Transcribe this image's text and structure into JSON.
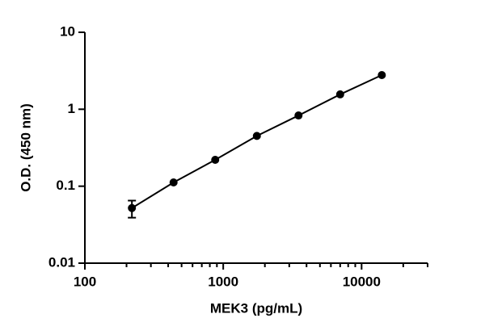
{
  "chart_data": {
    "type": "scatter",
    "xlabel": "MEK3 (pg/mL)",
    "ylabel": "O.D. (450 nm)",
    "xscale": "log",
    "yscale": "log",
    "xlim": [
      100,
      30000
    ],
    "ylim": [
      0.01,
      10
    ],
    "xticks": [
      100,
      1000,
      10000
    ],
    "x_minor_ticks": [
      200,
      300,
      400,
      500,
      600,
      700,
      800,
      900,
      2000,
      3000,
      4000,
      5000,
      6000,
      7000,
      8000,
      9000,
      20000,
      30000
    ],
    "yticks": [
      0.01,
      0.1,
      1,
      10
    ],
    "fit_line": true,
    "series": [
      {
        "color": "#000000",
        "x": [
          218.75,
          437.5,
          875,
          1750,
          3500,
          7000,
          14000
        ],
        "values": [
          0.052,
          0.112,
          0.22,
          0.45,
          0.83,
          1.56,
          2.78
        ],
        "errors": [
          0.013,
          null,
          null,
          null,
          null,
          null,
          null
        ]
      }
    ]
  }
}
